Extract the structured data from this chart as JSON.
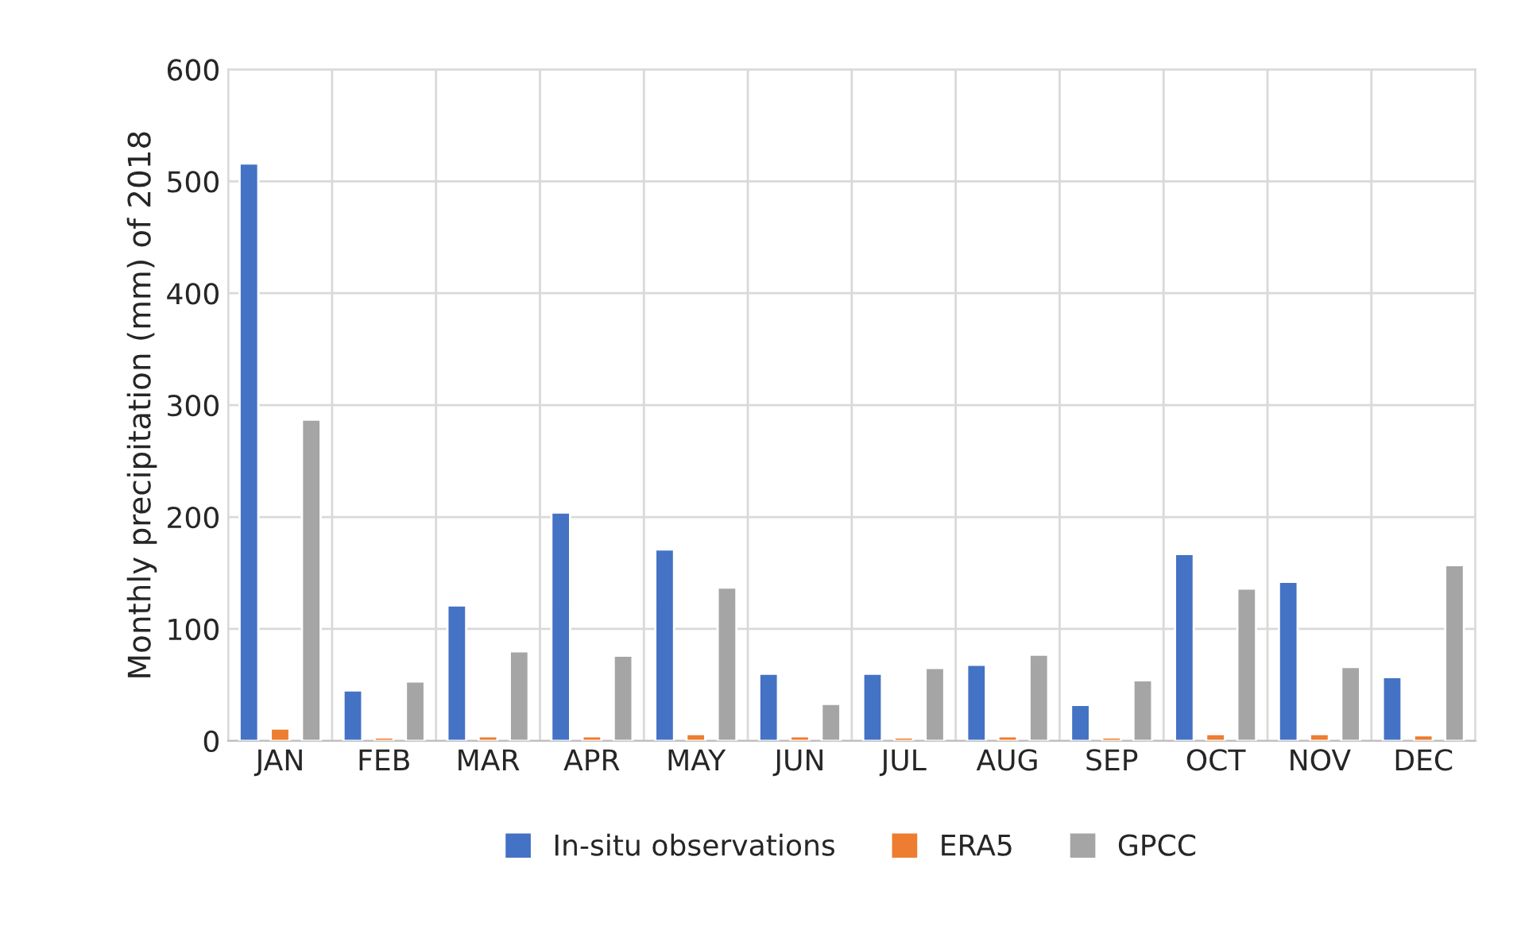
{
  "chart_data": {
    "type": "bar",
    "ylabel": "Monthly precipitation (mm) of 2018",
    "categories": [
      "JAN",
      "FEB",
      "MAR",
      "APR",
      "MAY",
      "JUN",
      "JUL",
      "AUG",
      "SEP",
      "OCT",
      "NOV",
      "DEC"
    ],
    "series": [
      {
        "name": "In-situ observations",
        "color": "#4472c4",
        "values": [
          516,
          45,
          121,
          204,
          171,
          60,
          60,
          68,
          32,
          167,
          142,
          57
        ]
      },
      {
        "name": "ERA5",
        "color": "#ed7d31",
        "values": [
          11,
          3,
          4,
          4,
          6,
          4,
          3,
          4,
          3,
          6,
          6,
          5
        ]
      },
      {
        "name": "GPCC",
        "color": "#a5a5a5",
        "values": [
          287,
          53,
          80,
          76,
          137,
          33,
          65,
          77,
          54,
          136,
          66,
          157
        ]
      }
    ],
    "ylim": [
      0,
      600
    ],
    "yticks": [
      0,
      100,
      200,
      300,
      400,
      500,
      600
    ],
    "grid": true,
    "legend": "bottom"
  }
}
